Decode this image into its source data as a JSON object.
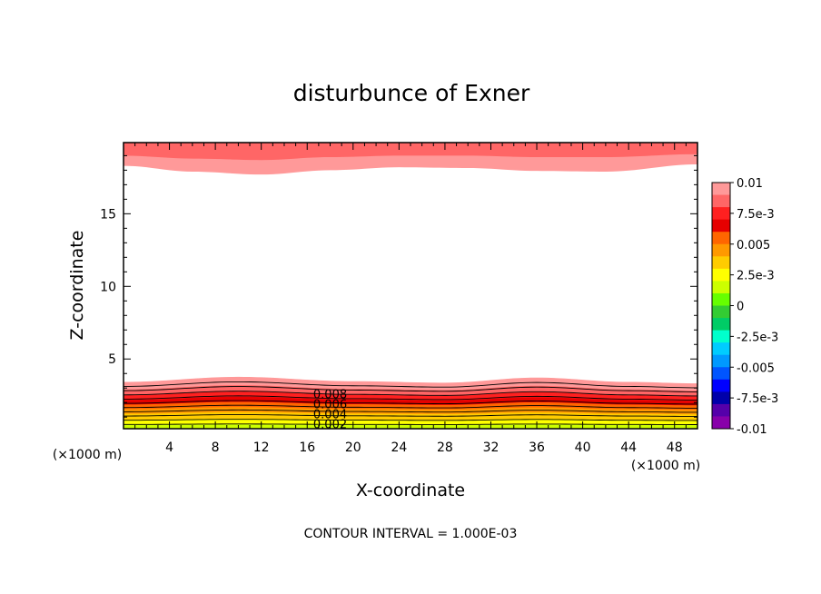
{
  "chart_data": {
    "type": "contour",
    "title": "disturbunce of Exner",
    "xlabel": "X-coordinate",
    "ylabel": "Z-coordinate",
    "x_unit": "(×1000 m)",
    "y_unit": "(×1000 m)",
    "x_ticks": [
      4,
      8,
      12,
      16,
      20,
      24,
      28,
      32,
      36,
      40,
      44,
      48
    ],
    "y_ticks": [
      5,
      10,
      15
    ],
    "xlim": [
      0,
      50
    ],
    "ylim": [
      0.2,
      19.9
    ],
    "footer": "CONTOUR INTERVAL = 1.000E-03",
    "contour_labels": [
      "0.008",
      "0.006",
      "0.004",
      "0.002"
    ],
    "colorbar": {
      "min": -0.01,
      "max": 0.01,
      "labels": [
        "0.01",
        "7.5e-3",
        "0.005",
        "2.5e-3",
        "0",
        "-2.5e-3",
        "-0.005",
        "-7.5e-3",
        "-0.01"
      ],
      "colors": [
        "#ff9999",
        "#ff6666",
        "#ff2020",
        "#e60000",
        "#ff6600",
        "#ff9900",
        "#ffcc00",
        "#ffff00",
        "#ccff00",
        "#66ff00",
        "#33cc33",
        "#00cc66",
        "#00ffcc",
        "#00ccff",
        "#0099ff",
        "#0055ff",
        "#0000ff",
        "#0000aa",
        "#5500aa",
        "#8800aa"
      ]
    },
    "lower_layer": {
      "description": "surface layer",
      "value_at_surface": 0.001,
      "value_at_top": 0.0105,
      "top_height_profile": {
        "x": [
          0,
          10,
          20,
          28,
          36,
          44,
          50
        ],
        "z": [
          3.4,
          3.75,
          3.45,
          3.35,
          3.7,
          3.4,
          3.3
        ]
      }
    },
    "upper_layer": {
      "description": "upper layer",
      "bottom_height_profile": {
        "x": [
          0,
          6,
          12,
          18,
          24,
          30,
          36,
          42,
          50
        ],
        "z": [
          18.3,
          17.9,
          17.7,
          18.0,
          18.2,
          18.15,
          17.95,
          17.9,
          18.4
        ]
      },
      "mid_height_profile": {
        "x": [
          0,
          6,
          12,
          18,
          24,
          30,
          36,
          42,
          50
        ],
        "z": [
          19.0,
          18.8,
          18.7,
          18.9,
          19.0,
          19.0,
          18.9,
          18.9,
          19.1
        ]
      }
    }
  }
}
